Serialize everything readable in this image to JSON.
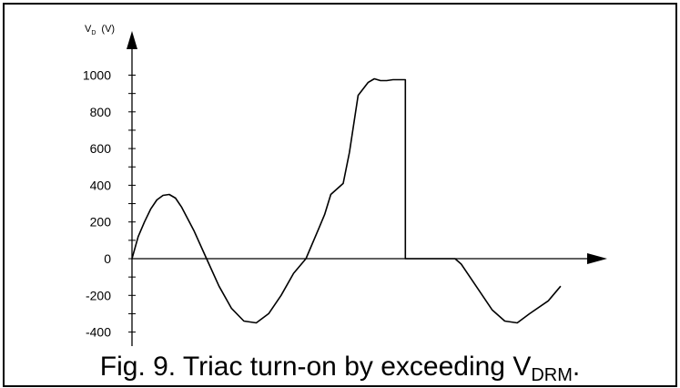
{
  "caption": {
    "prefix": "Fig. 9.  Triac turn-on by exceeding V",
    "sub": "DRM",
    "suffix": "."
  },
  "chart_data": {
    "type": "line",
    "title": "",
    "xlabel": "",
    "ylabel": {
      "main": "V",
      "sub": "D",
      "unit": "(V)"
    },
    "ylim": [
      -400,
      1000
    ],
    "yticks": [
      -400,
      -200,
      0,
      200,
      400,
      600,
      800,
      1000
    ],
    "ytick_labels": [
      "-400",
      "-200",
      "0",
      "200",
      "400",
      "600",
      "800",
      "1000"
    ],
    "grid": false,
    "colors": {
      "line": "#000000",
      "axis": "#000000"
    },
    "series": [
      {
        "x": [
          0.0,
          0.05,
          0.1,
          0.15,
          0.2,
          0.25,
          0.3,
          0.35,
          0.4,
          0.5,
          0.6,
          0.7,
          0.8,
          0.9,
          1.0,
          1.1,
          1.2,
          1.3,
          1.4,
          1.5,
          1.55,
          1.6,
          1.7,
          1.75,
          1.82,
          1.9,
          1.95,
          2.0,
          2.05,
          2.1,
          2.13,
          2.16,
          2.2,
          2.2,
          2.6,
          2.65,
          2.8,
          2.9,
          3.0,
          3.1,
          3.2,
          3.35,
          3.45
        ],
        "y": [
          0,
          120,
          200,
          270,
          320,
          345,
          350,
          330,
          280,
          150,
          0,
          -150,
          -270,
          -340,
          -350,
          -300,
          -200,
          -80,
          0,
          160,
          240,
          350,
          410,
          580,
          890,
          960,
          980,
          970,
          970,
          975,
          975,
          975,
          975,
          0,
          0,
          -30,
          -180,
          -280,
          -340,
          -350,
          -300,
          -230,
          -150
        ]
      }
    ]
  }
}
